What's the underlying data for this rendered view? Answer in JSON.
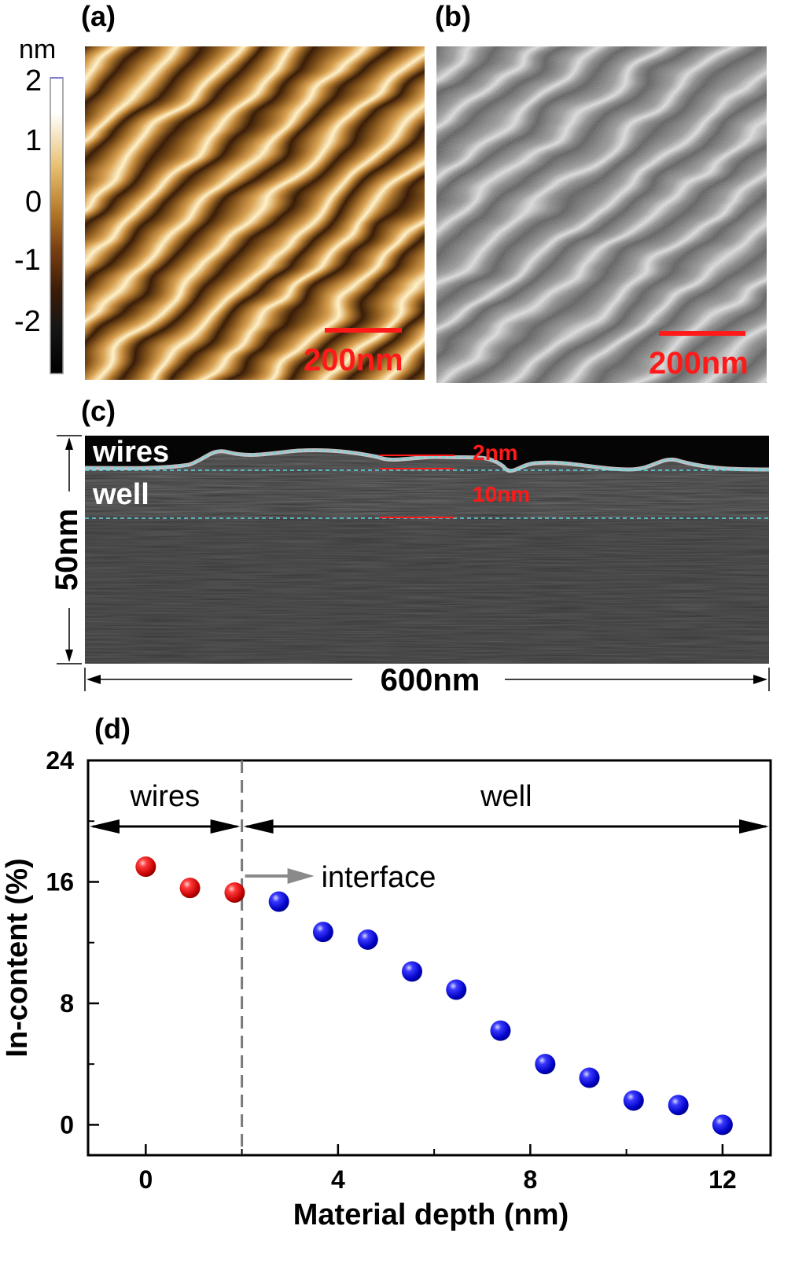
{
  "panels": {
    "a": {
      "label": "(a)",
      "colorbar": {
        "unit": "nm",
        "ticks": [
          "2",
          "1",
          "0",
          "-1",
          "-2"
        ]
      },
      "scalebar": "200nm"
    },
    "b": {
      "label": "(b)",
      "scalebar": "200nm"
    },
    "c": {
      "label": "(c)",
      "region_top": "wires",
      "region_bottom": "well",
      "thickness_wires": "2nm",
      "thickness_well": "10nm",
      "vertical_dim": "50nm",
      "horizontal_dim": "600nm"
    },
    "d": {
      "label": "(d)"
    }
  },
  "chart_data": {
    "type": "scatter",
    "xlabel": "Material depth (nm)",
    "ylabel": "In-content (%)",
    "xlim": [
      -1.2,
      13
    ],
    "ylim": [
      -2,
      24
    ],
    "xticks": [
      "0",
      "4",
      "8",
      "12"
    ],
    "yticks": [
      "0",
      "8",
      "16",
      "24"
    ],
    "interface_x": 2,
    "annotations": {
      "wires": "wires",
      "well": "well",
      "interface": "interface"
    },
    "series": [
      {
        "color": "#e8120f",
        "x": [
          0,
          0.92,
          1.85
        ],
        "y": [
          17.0,
          15.6,
          15.3
        ]
      },
      {
        "color": "#1414e6",
        "x": [
          2.77,
          3.69,
          4.62,
          5.54,
          6.46,
          7.38,
          8.31,
          9.23,
          10.15,
          11.08,
          12.0
        ],
        "y": [
          14.7,
          12.7,
          12.2,
          10.1,
          8.9,
          6.2,
          4.0,
          3.1,
          1.6,
          1.3,
          0.0
        ]
      }
    ]
  },
  "colors": {
    "scalebar": "#ff1a1a",
    "dashed_line": "#7a7a7a",
    "cyan_guides": "#5fd8e8"
  }
}
